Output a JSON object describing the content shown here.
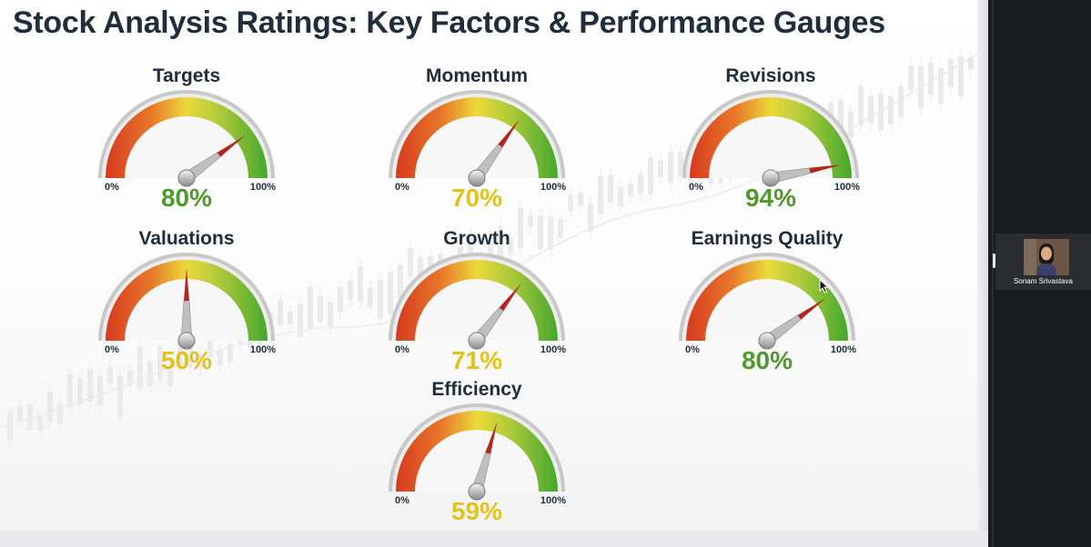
{
  "slide": {
    "title": "Stock Analysis Ratings: Key Factors & Performance Gauges"
  },
  "gauges": [
    {
      "title": "Targets",
      "value": 80,
      "value_label": "80%",
      "min_label": "0%",
      "max_label": "100%",
      "value_color": "#4f9a2b"
    },
    {
      "title": "Momentum",
      "value": 70,
      "value_label": "70%",
      "min_label": "0%",
      "max_label": "100%",
      "value_color": "#e2c21c"
    },
    {
      "title": "Revisions",
      "value": 94,
      "value_label": "94%",
      "min_label": "0%",
      "max_label": "100%",
      "value_color": "#4f9a2b"
    },
    {
      "title": "Valuations",
      "value": 50,
      "value_label": "50%",
      "min_label": "0%",
      "max_label": "100%",
      "value_color": "#e2c21c"
    },
    {
      "title": "Growth",
      "value": 71,
      "value_label": "71%",
      "min_label": "0%",
      "max_label": "100%",
      "value_color": "#e2c21c"
    },
    {
      "title": "Earnings Quality",
      "value": 80,
      "value_label": "80%",
      "min_label": "0%",
      "max_label": "100%",
      "value_color": "#4f9a2b"
    },
    {
      "title": "Efficiency",
      "value": 59,
      "value_label": "59%",
      "min_label": "0%",
      "max_label": "100%",
      "value_color": "#e2c21c"
    }
  ],
  "participant": {
    "name": "Sonam Srivastava"
  },
  "colors": {
    "gauge_red": "#d63a1f",
    "gauge_yellow": "#ecd93a",
    "gauge_green": "#45a72e",
    "needle_tip": "#b3261e",
    "title_text": "#1f2d3d"
  }
}
